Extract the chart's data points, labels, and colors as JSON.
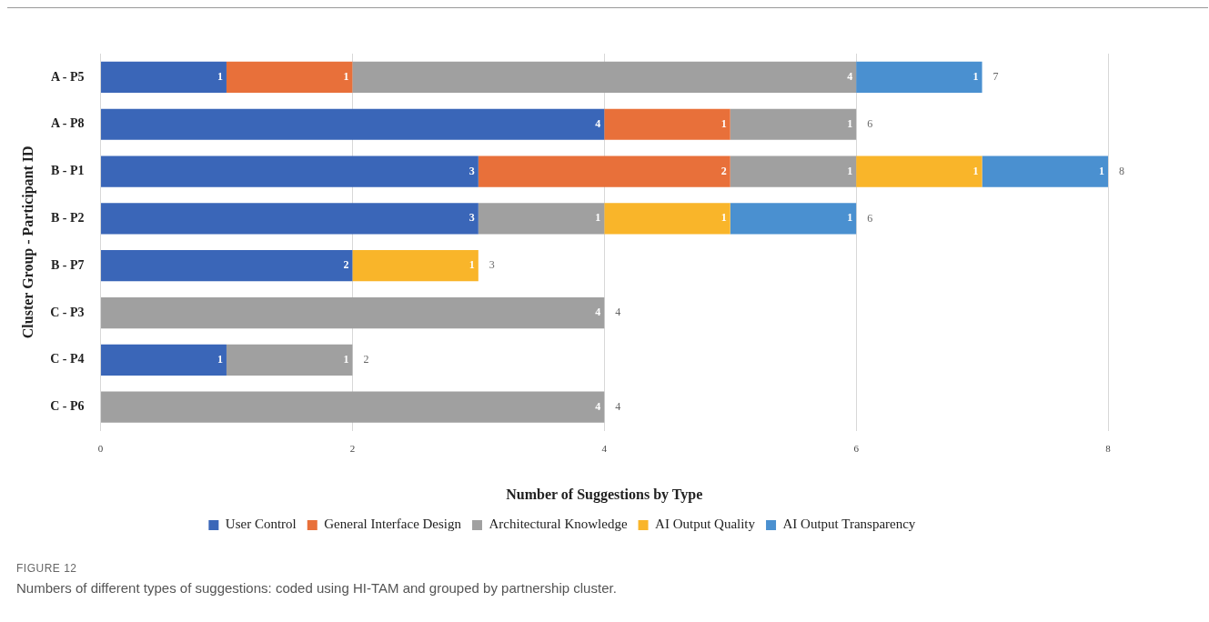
{
  "chart_data": {
    "type": "bar",
    "orientation": "horizontal",
    "stacked": true,
    "categories": [
      "A - P5",
      "A - P8",
      "B - P1",
      "B - P2",
      "B - P7",
      "C - P3",
      "C - P4",
      "C - P6"
    ],
    "series": [
      {
        "name": "User Control",
        "color": "#3a66b8",
        "values": [
          1,
          4,
          3,
          3,
          2,
          null,
          1,
          null
        ]
      },
      {
        "name": "General Interface Design",
        "color": "#e8703a",
        "values": [
          1,
          1,
          2,
          null,
          null,
          null,
          null,
          null
        ]
      },
      {
        "name": "Architectural Knowledge",
        "color": "#a0a0a0",
        "values": [
          4,
          1,
          1,
          1,
          null,
          4,
          1,
          4
        ]
      },
      {
        "name": "AI Output Quality",
        "color": "#f9b52a",
        "values": [
          null,
          null,
          1,
          1,
          1,
          null,
          null,
          null
        ]
      },
      {
        "name": "AI Output Transparency",
        "color": "#4a90d0",
        "values": [
          1,
          null,
          1,
          1,
          null,
          null,
          null,
          null
        ]
      }
    ],
    "totals": [
      "7",
      "6",
      "8",
      "6",
      "3",
      "4",
      "2",
      "4"
    ],
    "data_labels": true,
    "xlim": [
      0,
      8
    ],
    "xticks": [
      0,
      2,
      4,
      6,
      8
    ],
    "xlabel": "Number of Suggestions by Type",
    "ylabel": "Cluster Group - Participant ID",
    "grid": "x",
    "legend": "bottom",
    "annotations": [
      "FIGURE 12",
      "Numbers of different types of suggestions: coded using HI-TAM and grouped by partnership cluster."
    ]
  }
}
